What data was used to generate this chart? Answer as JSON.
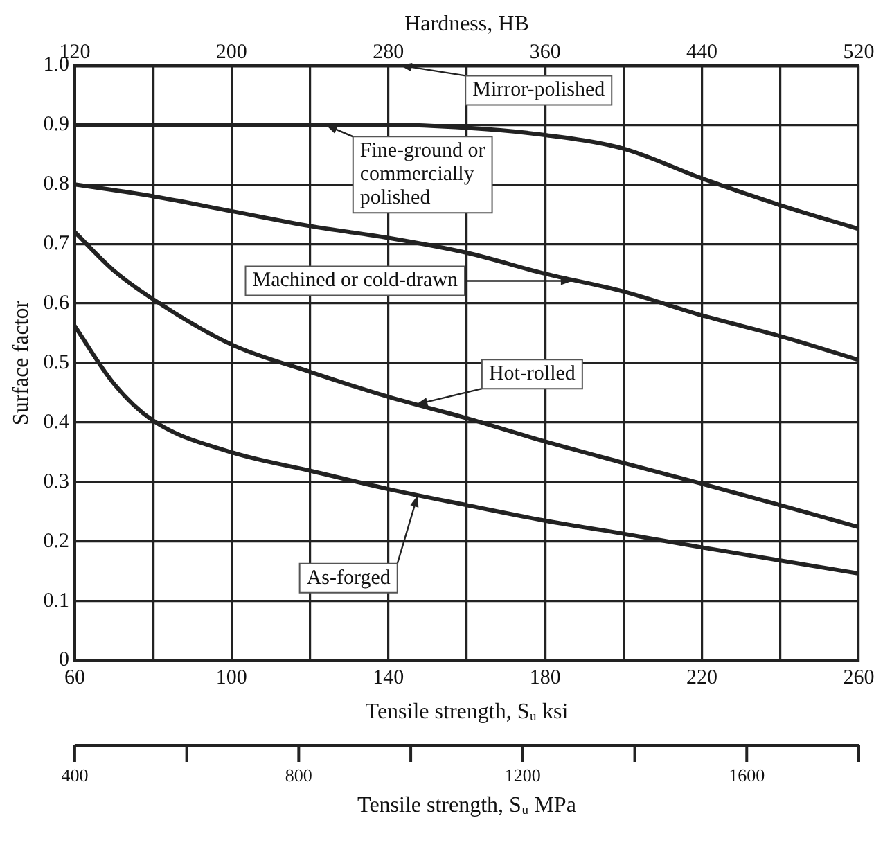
{
  "chart_data": {
    "type": "line",
    "xlabel": "Tensile strength, Sᵤ ksi",
    "ylabel": "Surface factor",
    "x2label": "Hardness, HB",
    "xlim": [
      60,
      260
    ],
    "xticks": [
      60,
      {
        "value": 80,
        "label": null
      },
      100,
      {
        "value": 120,
        "label": null
      },
      140,
      {
        "value": 160,
        "label": null
      },
      180,
      {
        "value": 200,
        "label": null
      },
      220,
      {
        "value": 240,
        "label": null
      },
      260
    ],
    "ylim": [
      0,
      1
    ],
    "yticks": [
      0,
      0.1,
      0.2,
      0.3,
      0.4,
      0.5,
      0.6,
      0.7,
      0.8,
      0.9,
      {
        "value": 1,
        "label": "1.0"
      }
    ],
    "x2lim": [
      120,
      520
    ],
    "x2ticks": [
      120,
      200,
      280,
      360,
      440,
      520
    ],
    "grid": true,
    "marker": "none",
    "line_style": "solid",
    "series": [
      {
        "color": "#222222",
        "x": [
          60,
          100,
          140,
          180,
          220,
          260
        ],
        "values": [
          1,
          1,
          1,
          1,
          1,
          1
        ]
      },
      {
        "color": "#222222",
        "x": [
          60,
          100,
          140,
          160,
          180,
          200,
          220,
          240,
          260
        ],
        "values": [
          0.9,
          0.9,
          0.9,
          0.895,
          0.883,
          0.86,
          0.81,
          0.765,
          0.725
        ]
      },
      {
        "color": "#222222",
        "x": [
          60,
          80,
          100,
          120,
          140,
          160,
          180,
          200,
          220,
          240,
          260
        ],
        "values": [
          0.8,
          0.78,
          0.755,
          0.73,
          0.71,
          0.685,
          0.65,
          0.62,
          0.58,
          0.545,
          0.505
        ]
      },
      {
        "color": "#222222",
        "x": [
          60,
          70,
          80,
          100,
          120,
          140,
          160,
          180,
          200,
          220,
          240,
          260
        ],
        "values": [
          0.72,
          0.655,
          0.607,
          0.531,
          0.485,
          0.443,
          0.407,
          0.368,
          0.332,
          0.297,
          0.261,
          0.224
        ]
      },
      {
        "color": "#222222",
        "x": [
          60,
          70,
          80,
          100,
          120,
          140,
          160,
          180,
          200,
          220,
          240,
          260
        ],
        "values": [
          0.562,
          0.465,
          0.403,
          0.35,
          0.319,
          0.288,
          0.261,
          0.235,
          0.213,
          0.19,
          0.168,
          0.146
        ]
      }
    ],
    "annotations": [
      {
        "text": "Mirror-polished",
        "x": 143,
        "y": 1
      },
      {
        "text": "Fine-ground or commercially polished",
        "x": 124,
        "y": 0.9
      },
      {
        "text": "Machined or cold-drawn",
        "x": 187,
        "y": 0.638
      },
      {
        "text": "Hot-rolled",
        "x": 147,
        "y": 0.43
      },
      {
        "text": "As-forged",
        "x": 147.5,
        "y": 0.278
      },
      "Tensile strength, Sᵤ MPa",
      "400",
      "800",
      "1200",
      "1600"
    ]
  }
}
